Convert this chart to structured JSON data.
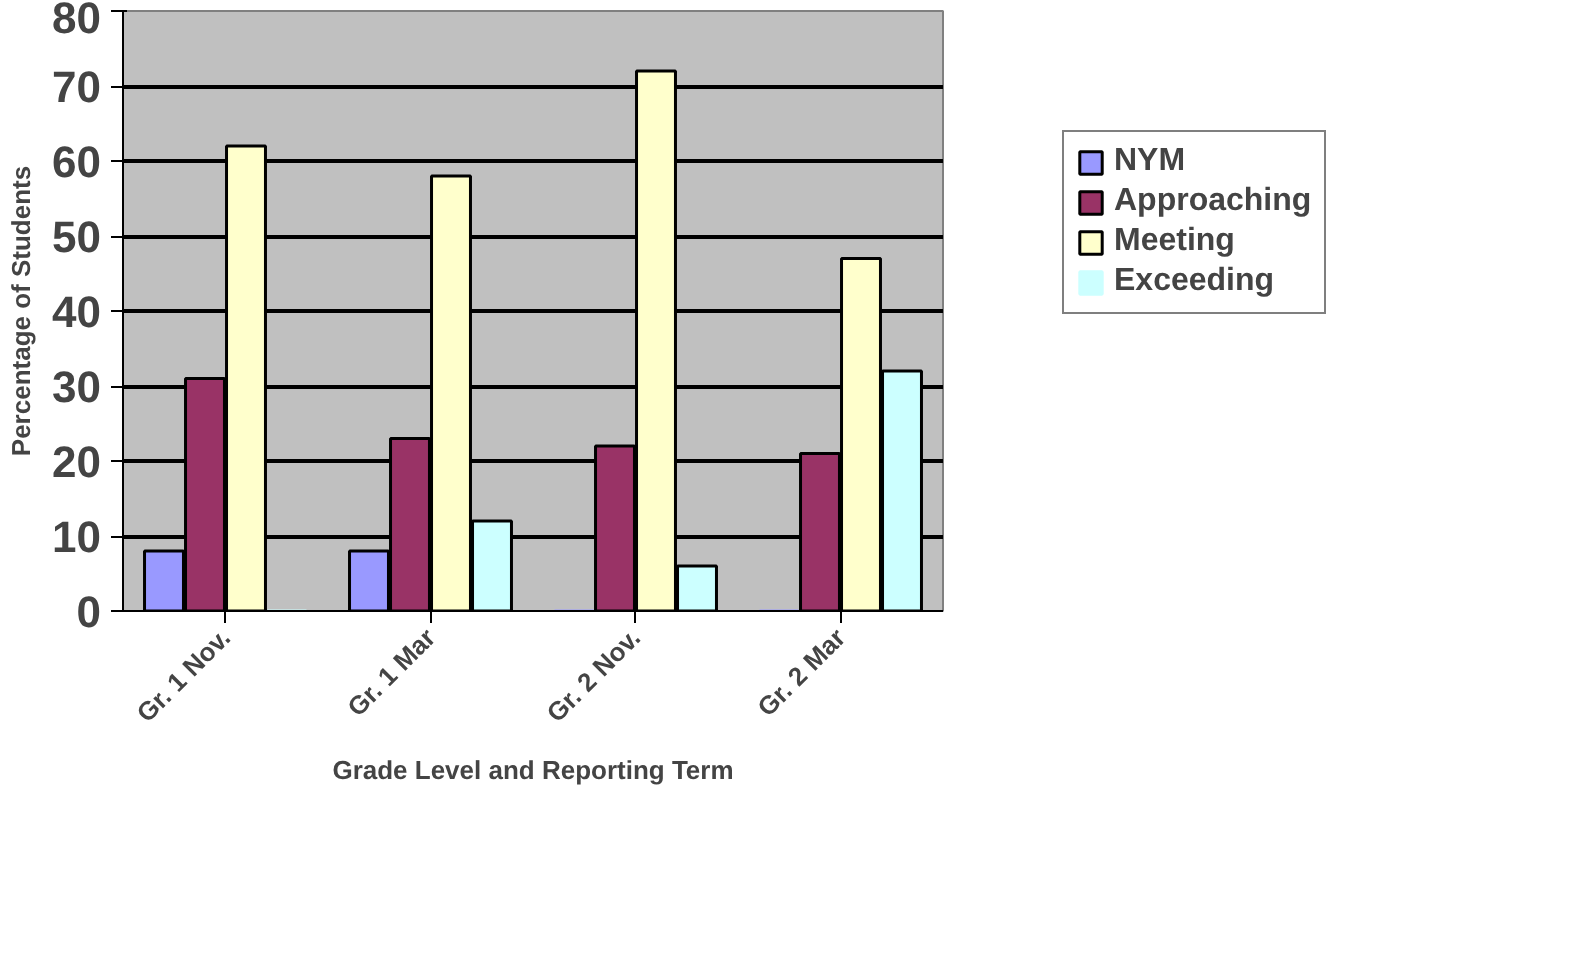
{
  "chart_data": {
    "type": "bar",
    "xlabel": "Grade Level and Reporting Term",
    "ylabel": "Percentage of Students",
    "categories": [
      "Gr. 1 Nov.",
      "Gr. 1 Mar",
      "Gr. 2 Nov.",
      "Gr. 2 Mar"
    ],
    "series": [
      {
        "name": "NYM",
        "color": "#9999ff",
        "values": [
          8,
          8,
          0,
          0
        ]
      },
      {
        "name": "Approaching",
        "color": "#993366",
        "values": [
          31,
          23,
          22,
          21
        ]
      },
      {
        "name": "Meeting",
        "color": "#ffffcc",
        "values": [
          62,
          58,
          72,
          47
        ]
      },
      {
        "name": "Exceeding",
        "color": "#ccffff",
        "values": [
          0,
          12,
          6,
          32
        ]
      }
    ],
    "ylim": [
      0,
      80
    ],
    "yticks": [
      0,
      10,
      20,
      30,
      40,
      50,
      60,
      70,
      80
    ],
    "grid": "y",
    "legend": "right"
  }
}
